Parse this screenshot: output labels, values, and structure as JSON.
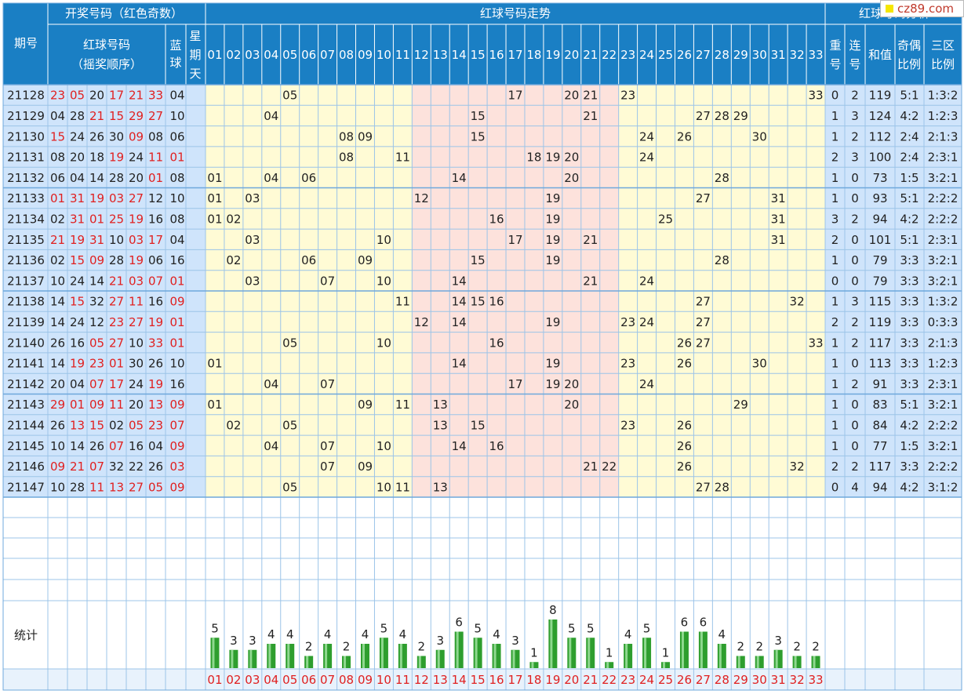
{
  "header": {
    "period": "期号",
    "draw_group": "开奖号码（红色奇数）",
    "red_balls": "红球号码",
    "red_balls_sub": "（摇奖顺序）",
    "blue": [
      "蓝",
      "球"
    ],
    "weekday": [
      "星",
      "期",
      "天"
    ],
    "trend": "红球号码走势",
    "analysis": "红球号码分析",
    "repeat": [
      "重",
      "号"
    ],
    "consecutive": [
      "连",
      "号"
    ],
    "sum": "和值",
    "odd_even": [
      "奇偶",
      "比例"
    ],
    "three_zone": [
      "三区",
      "比例"
    ]
  },
  "stats_label": "统计",
  "numbers": [
    "01",
    "02",
    "03",
    "04",
    "05",
    "06",
    "07",
    "08",
    "09",
    "10",
    "11",
    "12",
    "13",
    "14",
    "15",
    "16",
    "17",
    "18",
    "19",
    "20",
    "21",
    "22",
    "23",
    "24",
    "25",
    "26",
    "27",
    "28",
    "29",
    "30",
    "31",
    "32",
    "33"
  ],
  "rows": [
    {
      "period": "21128",
      "reds": [
        "23",
        "05",
        "20",
        "17",
        "21",
        "33"
      ],
      "blue": "04",
      "repeat": "0",
      "consec": "2",
      "sum": "119",
      "odd_even": "5:1",
      "zone": "1:3:2"
    },
    {
      "period": "21129",
      "reds": [
        "04",
        "28",
        "21",
        "15",
        "29",
        "27"
      ],
      "blue": "10",
      "repeat": "1",
      "consec": "3",
      "sum": "124",
      "odd_even": "4:2",
      "zone": "1:2:3"
    },
    {
      "period": "21130",
      "reds": [
        "15",
        "24",
        "26",
        "30",
        "09",
        "08"
      ],
      "blue": "06",
      "repeat": "1",
      "consec": "2",
      "sum": "112",
      "odd_even": "2:4",
      "zone": "2:1:3"
    },
    {
      "period": "21131",
      "reds": [
        "08",
        "20",
        "18",
        "19",
        "24",
        "11"
      ],
      "blue": "01",
      "repeat": "2",
      "consec": "3",
      "sum": "100",
      "odd_even": "2:4",
      "zone": "2:3:1"
    },
    {
      "period": "21132",
      "reds": [
        "06",
        "04",
        "14",
        "28",
        "20",
        "01"
      ],
      "blue": "08",
      "repeat": "1",
      "consec": "0",
      "sum": "73",
      "odd_even": "1:5",
      "zone": "3:2:1"
    },
    {
      "period": "21133",
      "reds": [
        "01",
        "31",
        "19",
        "03",
        "27",
        "12"
      ],
      "blue": "10",
      "repeat": "1",
      "consec": "0",
      "sum": "93",
      "odd_even": "5:1",
      "zone": "2:2:2"
    },
    {
      "period": "21134",
      "reds": [
        "02",
        "31",
        "01",
        "25",
        "19",
        "16"
      ],
      "blue": "08",
      "repeat": "3",
      "consec": "2",
      "sum": "94",
      "odd_even": "4:2",
      "zone": "2:2:2"
    },
    {
      "period": "21135",
      "reds": [
        "21",
        "19",
        "31",
        "10",
        "03",
        "17"
      ],
      "blue": "04",
      "repeat": "2",
      "consec": "0",
      "sum": "101",
      "odd_even": "5:1",
      "zone": "2:3:1"
    },
    {
      "period": "21136",
      "reds": [
        "02",
        "15",
        "09",
        "28",
        "19",
        "06"
      ],
      "blue": "16",
      "repeat": "1",
      "consec": "0",
      "sum": "79",
      "odd_even": "3:3",
      "zone": "3:2:1"
    },
    {
      "period": "21137",
      "reds": [
        "10",
        "24",
        "14",
        "21",
        "03",
        "07"
      ],
      "blue": "01",
      "repeat": "0",
      "consec": "0",
      "sum": "79",
      "odd_even": "3:3",
      "zone": "3:2:1"
    },
    {
      "period": "21138",
      "reds": [
        "14",
        "15",
        "32",
        "27",
        "11",
        "16"
      ],
      "blue": "09",
      "repeat": "1",
      "consec": "3",
      "sum": "115",
      "odd_even": "3:3",
      "zone": "1:3:2"
    },
    {
      "period": "21139",
      "reds": [
        "14",
        "24",
        "12",
        "23",
        "27",
        "19"
      ],
      "blue": "01",
      "repeat": "2",
      "consec": "2",
      "sum": "119",
      "odd_even": "3:3",
      "zone": "0:3:3"
    },
    {
      "period": "21140",
      "reds": [
        "26",
        "16",
        "05",
        "27",
        "10",
        "33"
      ],
      "blue": "01",
      "repeat": "1",
      "consec": "2",
      "sum": "117",
      "odd_even": "3:3",
      "zone": "2:1:3"
    },
    {
      "period": "21141",
      "reds": [
        "14",
        "19",
        "23",
        "01",
        "30",
        "26"
      ],
      "blue": "10",
      "repeat": "1",
      "consec": "0",
      "sum": "113",
      "odd_even": "3:3",
      "zone": "1:2:3"
    },
    {
      "period": "21142",
      "reds": [
        "20",
        "04",
        "07",
        "17",
        "24",
        "19"
      ],
      "blue": "16",
      "repeat": "1",
      "consec": "2",
      "sum": "91",
      "odd_even": "3:3",
      "zone": "2:3:1"
    },
    {
      "period": "21143",
      "reds": [
        "29",
        "01",
        "09",
        "11",
        "20",
        "13"
      ],
      "blue": "09",
      "repeat": "1",
      "consec": "0",
      "sum": "83",
      "odd_even": "5:1",
      "zone": "3:2:1"
    },
    {
      "period": "21144",
      "reds": [
        "26",
        "13",
        "15",
        "02",
        "05",
        "23"
      ],
      "blue": "07",
      "repeat": "1",
      "consec": "0",
      "sum": "84",
      "odd_even": "4:2",
      "zone": "2:2:2"
    },
    {
      "period": "21145",
      "reds": [
        "10",
        "14",
        "26",
        "07",
        "16",
        "04"
      ],
      "blue": "09",
      "repeat": "1",
      "consec": "0",
      "sum": "77",
      "odd_even": "1:5",
      "zone": "3:2:1"
    },
    {
      "period": "21146",
      "reds": [
        "09",
        "21",
        "07",
        "32",
        "22",
        "26"
      ],
      "blue": "03",
      "repeat": "2",
      "consec": "2",
      "sum": "117",
      "odd_even": "3:3",
      "zone": "2:2:2"
    },
    {
      "period": "21147",
      "reds": [
        "10",
        "28",
        "11",
        "13",
        "27",
        "05"
      ],
      "blue": "09",
      "repeat": "0",
      "consec": "4",
      "sum": "94",
      "odd_even": "4:2",
      "zone": "3:1:2"
    }
  ],
  "chart_data": {
    "type": "bar",
    "title": "统计",
    "categories": [
      "01",
      "02",
      "03",
      "04",
      "05",
      "06",
      "07",
      "08",
      "09",
      "10",
      "11",
      "12",
      "13",
      "14",
      "15",
      "16",
      "17",
      "18",
      "19",
      "20",
      "21",
      "22",
      "23",
      "24",
      "25",
      "26",
      "27",
      "28",
      "29",
      "30",
      "31",
      "32",
      "33"
    ],
    "values": [
      5,
      3,
      3,
      4,
      4,
      2,
      4,
      2,
      4,
      5,
      4,
      2,
      3,
      6,
      5,
      4,
      3,
      1,
      8,
      5,
      5,
      1,
      4,
      5,
      1,
      6,
      6,
      4,
      2,
      2,
      3,
      2,
      2
    ]
  },
  "colors": {
    "header_bg": "#1a7fc4",
    "header_text": "#ffffff",
    "row_label_bg": "#cfe4fb",
    "zone1_bg": "#fffbd5",
    "zone2_bg": "#fde2dc",
    "odd_red": "#e02020",
    "even_text": "#222222",
    "bar_green": "#2e9e2e",
    "grid": "#9cc4e8"
  },
  "watermark": "cz89.com"
}
